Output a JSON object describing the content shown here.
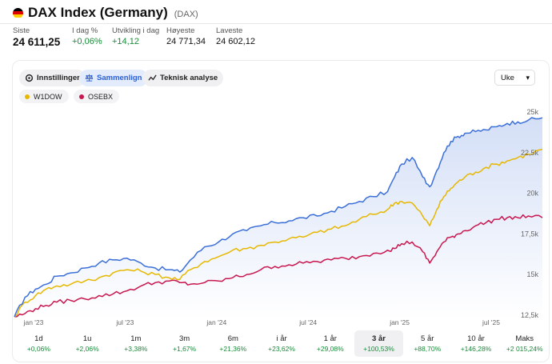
{
  "header": {
    "title": "DAX Index (Germany)",
    "ticker": "(DAX)",
    "flag_colors": [
      "#000000",
      "#dd0000",
      "#ffce00"
    ]
  },
  "stats": [
    {
      "label": "Siste",
      "value": "24 611,25",
      "style": "big"
    },
    {
      "label": "I dag %",
      "value": "+0,06%",
      "style": "green"
    },
    {
      "label": "Utvikling i dag",
      "value": "+14,12",
      "style": "green"
    },
    {
      "label": "Høyeste",
      "value": "24 771,34",
      "style": "plain"
    },
    {
      "label": "Laveste",
      "value": "24 602,12",
      "style": "plain"
    }
  ],
  "toolbar": {
    "settings_label": "Innstillinger",
    "compare_label": "Sammenlign",
    "technical_label": "Teknisk analyse",
    "interval_value": "Uke"
  },
  "compare_chips": [
    {
      "label": "W1DOW",
      "color": "#e6b800"
    },
    {
      "label": "OSEBX",
      "color": "#c8174f"
    }
  ],
  "periods": [
    {
      "label": "1d",
      "change": "+0,06%"
    },
    {
      "label": "1u",
      "change": "+2,06%"
    },
    {
      "label": "1m",
      "change": "+3,38%"
    },
    {
      "label": "3m",
      "change": "+1,67%"
    },
    {
      "label": "6m",
      "change": "+21,36%"
    },
    {
      "label": "i år",
      "change": "+23,62%"
    },
    {
      "label": "1 år",
      "change": "+29,08%"
    },
    {
      "label": "3 år",
      "change": "+100,53%",
      "active": true
    },
    {
      "label": "5 år",
      "change": "+88,70%"
    },
    {
      "label": "10 år",
      "change": "+146,28%"
    },
    {
      "label": "Maks",
      "change": "+2 015,24%"
    }
  ],
  "chart_data": {
    "type": "line",
    "y_tick_labels": [
      "25k",
      "22,5k",
      "20k",
      "17,5k",
      "15k",
      "12,5k"
    ],
    "y_ticks": [
      25000,
      22500,
      20000,
      17500,
      15000,
      12500
    ],
    "ylim": [
      12200,
      25300
    ],
    "x_tick_labels": [
      "jan '23",
      "jul '23",
      "jan '24",
      "jul '24",
      "jan '25",
      "jul '25"
    ],
    "x_ticks": [
      5,
      31,
      57,
      83,
      109,
      135
    ],
    "x_range": [
      0,
      150
    ],
    "series": [
      {
        "name": "DAX",
        "color": "#3b6fd8",
        "fill": true,
        "x": [
          0,
          3,
          6,
          9,
          12,
          16,
          20,
          24,
          28,
          32,
          36,
          40,
          44,
          47,
          50,
          54,
          58,
          62,
          66,
          70,
          74,
          78,
          82,
          86,
          90,
          94,
          98,
          102,
          106,
          108,
          110,
          113,
          116,
          118,
          120,
          122,
          124,
          126,
          128,
          131,
          134,
          137,
          140,
          143,
          146,
          150
        ],
        "values": [
          12400,
          13600,
          14100,
          14400,
          14900,
          15100,
          15400,
          15700,
          15900,
          16000,
          15700,
          15400,
          15300,
          15150,
          15900,
          16700,
          17000,
          17500,
          17700,
          18000,
          18200,
          18300,
          18500,
          18600,
          18900,
          19200,
          19500,
          19800,
          20100,
          21000,
          21800,
          22200,
          21000,
          20400,
          21400,
          22500,
          23200,
          23500,
          23700,
          23800,
          23900,
          24100,
          24300,
          24400,
          24500,
          24650
        ]
      },
      {
        "name": "W1DOW",
        "color": "#e6b800",
        "fill": false,
        "x": [
          0,
          3,
          6,
          9,
          12,
          16,
          20,
          24,
          28,
          32,
          36,
          40,
          44,
          47,
          50,
          54,
          58,
          62,
          66,
          70,
          74,
          78,
          82,
          86,
          90,
          94,
          98,
          102,
          106,
          108,
          110,
          113,
          116,
          118,
          120,
          122,
          124,
          126,
          128,
          131,
          134,
          137,
          140,
          143,
          146,
          150
        ],
        "values": [
          12400,
          13300,
          13700,
          14100,
          14300,
          14400,
          14600,
          14800,
          15100,
          15300,
          15200,
          15000,
          14800,
          14700,
          15300,
          15800,
          16100,
          16500,
          16600,
          16800,
          17000,
          17200,
          17300,
          17600,
          17800,
          18000,
          18400,
          18700,
          19000,
          19400,
          19500,
          19400,
          18600,
          18000,
          19000,
          19800,
          20300,
          20700,
          21000,
          21300,
          21600,
          21800,
          22000,
          22200,
          22400,
          22700
        ]
      },
      {
        "name": "OSEBX",
        "color": "#c8174f",
        "fill": false,
        "x": [
          0,
          3,
          6,
          9,
          12,
          16,
          20,
          24,
          28,
          32,
          36,
          40,
          44,
          47,
          50,
          54,
          58,
          62,
          66,
          70,
          74,
          78,
          82,
          86,
          90,
          94,
          98,
          102,
          106,
          108,
          110,
          113,
          116,
          118,
          120,
          122,
          124,
          126,
          128,
          131,
          134,
          137,
          140,
          143,
          146,
          150
        ],
        "values": [
          12400,
          12600,
          12900,
          13100,
          13300,
          13400,
          13500,
          13700,
          13800,
          14000,
          14300,
          14500,
          14600,
          14500,
          14400,
          14500,
          14600,
          14800,
          15000,
          15300,
          15500,
          15600,
          15700,
          15800,
          15900,
          16000,
          16100,
          16300,
          16500,
          16600,
          16900,
          17000,
          16400,
          15700,
          16400,
          17000,
          17300,
          17500,
          17700,
          18000,
          18200,
          18400,
          18500,
          18500,
          18600,
          18500
        ]
      }
    ],
    "grid": false,
    "legend": "top-left"
  }
}
